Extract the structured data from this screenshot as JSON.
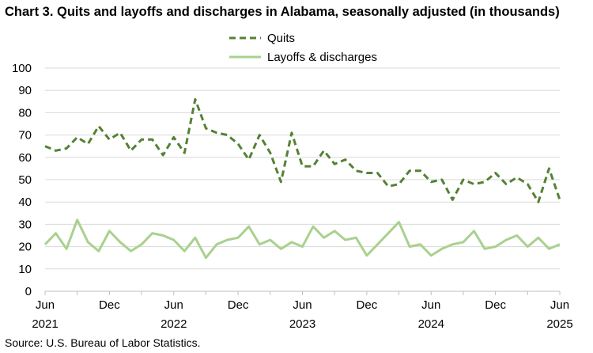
{
  "chart_data": {
    "type": "line",
    "title": "Chart 3. Quits and layoffs and discharges in Alabama, seasonally adjusted (in thousands)",
    "source": "Source: U.S. Bureau of Labor Statistics.",
    "xlabel": "",
    "ylabel": "",
    "ylim": [
      0,
      100
    ],
    "y_ticks": [
      "0",
      "10",
      "20",
      "30",
      "40",
      "50",
      "60",
      "70",
      "80",
      "90",
      "100"
    ],
    "grid": "horizontal",
    "legend_position": "top-center",
    "x_tick_labels": [
      {
        "month": "Jun",
        "year": "2021",
        "index": 0
      },
      {
        "month": "Dec",
        "year": "",
        "index": 6
      },
      {
        "month": "Jun",
        "year": "2022",
        "index": 12
      },
      {
        "month": "Dec",
        "year": "",
        "index": 18
      },
      {
        "month": "Jun",
        "year": "2023",
        "index": 24
      },
      {
        "month": "Dec",
        "year": "",
        "index": 30
      },
      {
        "month": "Jun",
        "year": "2024",
        "index": 36
      },
      {
        "month": "Dec",
        "year": "",
        "index": 42
      },
      {
        "month": "Jun",
        "year": "2025",
        "index": 48
      }
    ],
    "x": [
      "2021-06",
      "2021-07",
      "2021-08",
      "2021-09",
      "2021-10",
      "2021-11",
      "2021-12",
      "2022-01",
      "2022-02",
      "2022-03",
      "2022-04",
      "2022-05",
      "2022-06",
      "2022-07",
      "2022-08",
      "2022-09",
      "2022-10",
      "2022-11",
      "2022-12",
      "2023-01",
      "2023-02",
      "2023-03",
      "2023-04",
      "2023-05",
      "2023-06",
      "2023-07",
      "2023-08",
      "2023-09",
      "2023-10",
      "2023-11",
      "2023-12",
      "2024-01",
      "2024-02",
      "2024-03",
      "2024-04",
      "2024-05",
      "2024-06",
      "2024-07",
      "2024-08",
      "2024-09",
      "2024-10",
      "2024-11",
      "2024-12",
      "2025-01",
      "2025-02",
      "2025-03",
      "2025-04",
      "2025-05",
      "2025-06"
    ],
    "series": [
      {
        "name": "Quits",
        "color": "#548235",
        "style": "dashed",
        "values": [
          65,
          63,
          64,
          69,
          66,
          74,
          68,
          71,
          63,
          68,
          68,
          61,
          69,
          62,
          86,
          73,
          71,
          70,
          66,
          59,
          70,
          62,
          49,
          71,
          56,
          56,
          63,
          57,
          59,
          54,
          53,
          53,
          47,
          48,
          54,
          54,
          49,
          50,
          41,
          50,
          48,
          49,
          53,
          48,
          51,
          48,
          40,
          55,
          41
        ]
      },
      {
        "name": "Layoffs & discharges",
        "color": "#a9d18e",
        "style": "solid",
        "values": [
          21,
          26,
          19,
          32,
          22,
          18,
          27,
          22,
          18,
          21,
          26,
          25,
          23,
          18,
          24,
          15,
          21,
          23,
          24,
          29,
          21,
          23,
          19,
          22,
          20,
          29,
          24,
          27,
          23,
          24,
          16,
          21,
          26,
          31,
          20,
          21,
          16,
          19,
          21,
          22,
          27,
          19,
          20,
          23,
          25,
          20,
          24,
          19,
          21
        ]
      }
    ]
  }
}
